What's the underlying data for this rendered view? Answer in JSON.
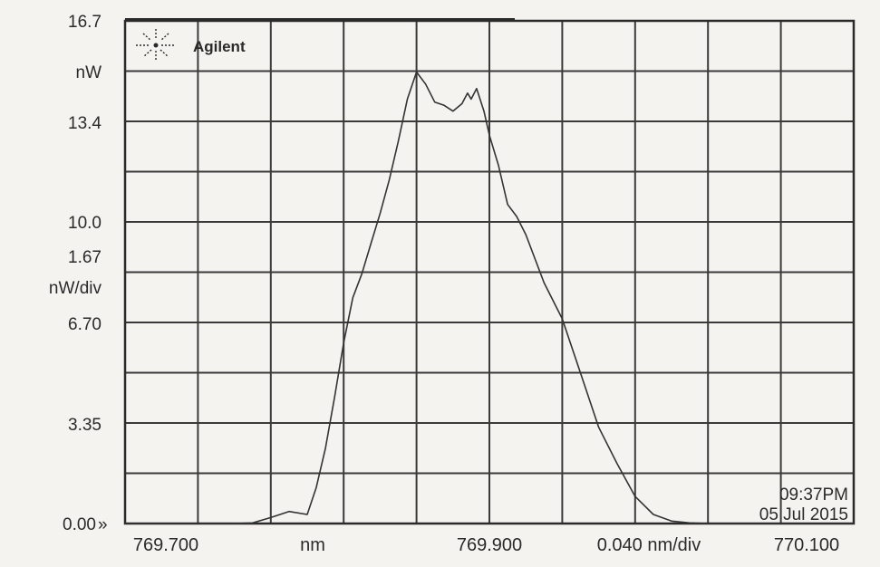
{
  "brand": {
    "name": "Agilent",
    "logo_icon": "agilent-spark-icon"
  },
  "left_labels": {
    "ref_level": "16.7",
    "ref_unit": "nW",
    "tick_13_4": "13.4",
    "tick_10_0": "10.0",
    "scale_value": "1.67",
    "scale_unit": "nW/div",
    "tick_6_70": "6.70",
    "tick_3_35": "3.35",
    "tick_0_00": "0.00",
    "zero_marker": "»"
  },
  "bottom_labels": {
    "start": "769.700",
    "unit": "nm",
    "center": "769.900",
    "span_per_div": "0.040 nm/div",
    "stop": "770.100"
  },
  "timestamp": {
    "time": "09:37PM",
    "date": "05 Jul 2015"
  },
  "colors": {
    "background": "#f4f3ef",
    "trace": "#333333",
    "grid": "#3a3a3a"
  },
  "chart_data": {
    "type": "line",
    "title": "",
    "xlabel": "nm",
    "ylabel": "nW",
    "xlim": [
      769.7,
      770.1
    ],
    "ylim": [
      0,
      16.7
    ],
    "x_divisions": 10,
    "y_divisions": 10,
    "grid": true,
    "series": [
      {
        "x": [
          769.7,
          769.75,
          769.76,
          769.77,
          769.78,
          769.79,
          769.8,
          769.805,
          769.81,
          769.815,
          769.82,
          769.825,
          769.83,
          769.835,
          769.84,
          769.845,
          769.85,
          769.855,
          769.86,
          769.865,
          769.87,
          769.875,
          769.88,
          769.885,
          769.888,
          769.89,
          769.893,
          769.897,
          769.9,
          769.905,
          769.91,
          769.915,
          769.92,
          769.93,
          769.94,
          769.95,
          769.96,
          769.97,
          769.98,
          769.99,
          770.0,
          770.01,
          770.02,
          770.04,
          770.06,
          770.1
        ],
        "y": [
          0.0,
          0.0,
          0.0,
          0.02,
          0.2,
          0.4,
          0.3,
          1.2,
          2.5,
          4.2,
          6.0,
          7.5,
          8.3,
          9.3,
          10.3,
          11.4,
          12.7,
          14.1,
          15.0,
          14.6,
          14.0,
          13.9,
          13.7,
          13.95,
          14.3,
          14.1,
          14.45,
          13.7,
          12.9,
          11.9,
          10.6,
          10.2,
          9.6,
          8.0,
          6.8,
          5.0,
          3.2,
          2.0,
          0.9,
          0.3,
          0.08,
          0.02,
          0.0,
          0.0,
          0.0,
          0.0
        ]
      }
    ]
  }
}
